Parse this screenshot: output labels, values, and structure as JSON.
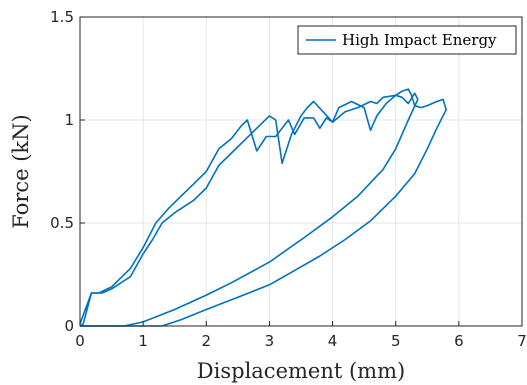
{
  "chart_data": {
    "type": "line",
    "xlabel": "Displacement (mm)",
    "ylabel": "Force (kN)",
    "xlim": [
      0,
      7
    ],
    "ylim": [
      0,
      1.5
    ],
    "x_ticks": [
      "0",
      "1",
      "2",
      "3",
      "4",
      "5",
      "6",
      "7"
    ],
    "y_ticks": [
      "0",
      "0.5",
      "1",
      "1.5"
    ],
    "grid": true,
    "legend_position": "top-right",
    "series": [
      {
        "name": "High Impact Energy",
        "color": "#0072bd",
        "points": [
          [
            0.0,
            0.0
          ],
          [
            0.05,
            0.01
          ],
          [
            0.18,
            0.16
          ],
          [
            0.25,
            0.16
          ],
          [
            0.35,
            0.16
          ],
          [
            0.5,
            0.18
          ],
          [
            0.8,
            0.24
          ],
          [
            1.0,
            0.35
          ],
          [
            1.15,
            0.42
          ],
          [
            1.3,
            0.5
          ],
          [
            1.5,
            0.55
          ],
          [
            1.8,
            0.61
          ],
          [
            2.0,
            0.67
          ],
          [
            2.2,
            0.78
          ],
          [
            2.4,
            0.84
          ],
          [
            2.6,
            0.9
          ],
          [
            2.8,
            0.96
          ],
          [
            3.0,
            1.02
          ],
          [
            3.1,
            1.0
          ],
          [
            3.2,
            0.79
          ],
          [
            3.35,
            0.93
          ],
          [
            3.5,
            1.02
          ],
          [
            3.6,
            1.06
          ],
          [
            3.7,
            1.09
          ],
          [
            3.85,
            1.04
          ],
          [
            4.0,
            0.99
          ],
          [
            4.1,
            1.06
          ],
          [
            4.3,
            1.09
          ],
          [
            4.5,
            1.06
          ],
          [
            4.6,
            0.95
          ],
          [
            4.7,
            1.02
          ],
          [
            4.85,
            1.08
          ],
          [
            5.0,
            1.12
          ],
          [
            5.1,
            1.14
          ],
          [
            5.2,
            1.15
          ],
          [
            5.25,
            1.12
          ],
          [
            5.3,
            1.07
          ],
          [
            5.4,
            1.06
          ],
          [
            5.5,
            1.07
          ],
          [
            5.65,
            1.09
          ],
          [
            5.75,
            1.1
          ],
          [
            5.8,
            1.05
          ],
          [
            5.65,
            0.96
          ],
          [
            5.5,
            0.86
          ],
          [
            5.3,
            0.74
          ],
          [
            5.0,
            0.63
          ],
          [
            4.6,
            0.51
          ],
          [
            4.2,
            0.42
          ],
          [
            3.8,
            0.34
          ],
          [
            3.4,
            0.27
          ],
          [
            3.0,
            0.2
          ],
          [
            2.5,
            0.14
          ],
          [
            2.0,
            0.08
          ],
          [
            1.6,
            0.03
          ],
          [
            1.3,
            0.0
          ],
          [
            0.9,
            0.0
          ],
          [
            0.5,
            0.0
          ],
          [
            0.0,
            0.0
          ]
        ]
      },
      {
        "name": "",
        "color": "#0072bd",
        "points": [
          [
            0.0,
            0.01
          ],
          [
            0.18,
            0.16
          ],
          [
            0.3,
            0.16
          ],
          [
            0.5,
            0.19
          ],
          [
            0.8,
            0.28
          ],
          [
            1.0,
            0.38
          ],
          [
            1.2,
            0.5
          ],
          [
            1.4,
            0.57
          ],
          [
            1.6,
            0.63
          ],
          [
            1.8,
            0.69
          ],
          [
            2.0,
            0.75
          ],
          [
            2.2,
            0.86
          ],
          [
            2.4,
            0.91
          ],
          [
            2.55,
            0.97
          ],
          [
            2.65,
            1.0
          ],
          [
            2.8,
            0.85
          ],
          [
            2.95,
            0.92
          ],
          [
            3.1,
            0.92
          ],
          [
            3.3,
            1.0
          ],
          [
            3.4,
            0.93
          ],
          [
            3.55,
            1.01
          ],
          [
            3.7,
            1.01
          ],
          [
            3.8,
            0.96
          ],
          [
            3.9,
            1.01
          ],
          [
            4.0,
            0.99
          ],
          [
            4.2,
            1.04
          ],
          [
            4.4,
            1.06
          ],
          [
            4.6,
            1.09
          ],
          [
            4.7,
            1.08
          ],
          [
            4.8,
            1.11
          ],
          [
            5.0,
            1.12
          ],
          [
            5.1,
            1.11
          ],
          [
            5.2,
            1.08
          ],
          [
            5.3,
            1.13
          ],
          [
            5.35,
            1.1
          ],
          [
            5.2,
            1.0
          ],
          [
            5.0,
            0.86
          ],
          [
            4.8,
            0.76
          ],
          [
            4.4,
            0.63
          ],
          [
            4.0,
            0.53
          ],
          [
            3.6,
            0.44
          ],
          [
            3.0,
            0.31
          ],
          [
            2.4,
            0.21
          ],
          [
            2.0,
            0.15
          ],
          [
            1.5,
            0.08
          ],
          [
            1.0,
            0.02
          ],
          [
            0.7,
            0.0
          ],
          [
            0.3,
            0.0
          ],
          [
            0.0,
            0.0
          ]
        ]
      }
    ]
  }
}
